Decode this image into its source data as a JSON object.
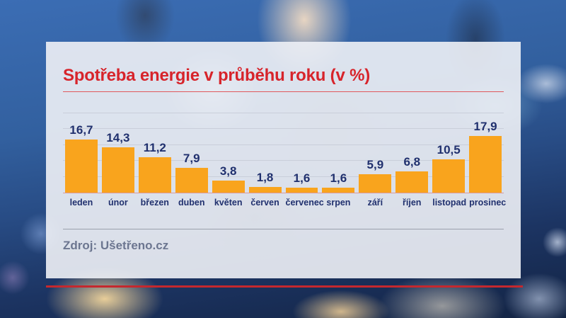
{
  "title": "Spotřeba energie v průběhu roku (v %)",
  "source_label": "Zdroj: Ušetřeno.cz",
  "colors": {
    "bar_orange": "#f9a41d",
    "title_red": "#d7242b",
    "underline_red": "#e0585c",
    "label_navy": "#20306e",
    "baseline_pink": "#d9999c",
    "gridline_gray": "#c9ceda",
    "divider_gray": "#9aa0ac",
    "source_gray": "#6c7690",
    "accent_red": "#c5282e"
  },
  "chart_data": {
    "type": "bar",
    "title": "Spotřeba energie v průběhu roku (v %)",
    "categories": [
      "leden",
      "únor",
      "březen",
      "duben",
      "květen",
      "červen",
      "červenec",
      "srpen",
      "září",
      "říjen",
      "listopad",
      "prosinec"
    ],
    "values": [
      16.7,
      14.3,
      11.2,
      7.9,
      3.8,
      1.8,
      1.6,
      1.6,
      5.9,
      6.8,
      10.5,
      17.9
    ],
    "value_labels": [
      "16,7",
      "14,3",
      "11,2",
      "7,9",
      "3,8",
      "1,8",
      "1,6",
      "1,6",
      "5,9",
      "6,8",
      "10,5",
      "17,9"
    ],
    "xlabel": "",
    "ylabel": "",
    "ylim": [
      0,
      25
    ],
    "gridline_step": 5,
    "grid": true,
    "legend": false,
    "bar_color": "#f9a41d",
    "source": "Zdroj: Ušetřeno.cz"
  }
}
